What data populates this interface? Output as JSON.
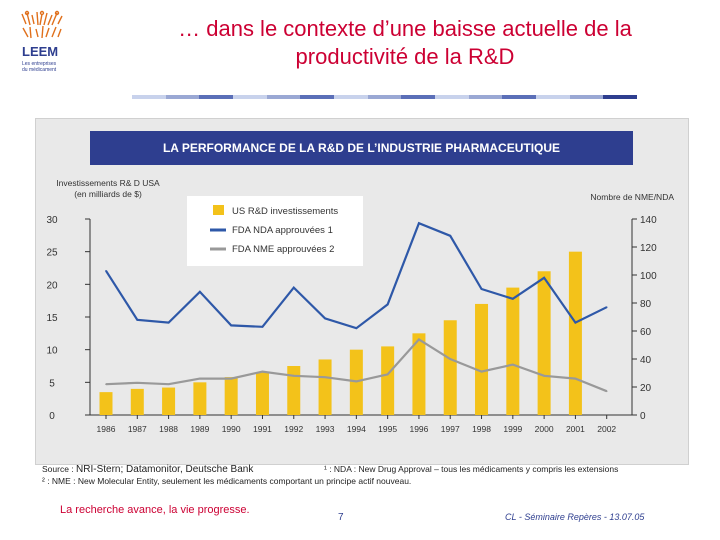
{
  "slide": {
    "title_line1": "… dans le contexte d’une baisse actuelle de la",
    "title_line2": "productivité de la R&D",
    "footer_left": "La recherche avance, la vie progresse.",
    "page_number": "7",
    "footer_right": "CL - Séminaire Repères - 13.07.05"
  },
  "logo": {
    "text": "LEEM",
    "tagline_line1": "Les entreprises",
    "tagline_line2": "du médicament"
  },
  "colors": {
    "title": "#cc0033",
    "header_bg": "#2e3e8f",
    "bars": "#f3c21a",
    "nda_line": "#2e58a8",
    "nme_line": "#999999",
    "rule": [
      "#c8d2ec",
      "#9aa8d4",
      "#5b6fb8",
      "#c8d2ec",
      "#9aa8d4",
      "#5b6fb8",
      "#c8d2ec",
      "#9aa8d4",
      "#5b6fb8",
      "#c8d2ec",
      "#9aa8d4",
      "#5b6fb8",
      "#c8d2ec",
      "#9aa8d4",
      "#2e3e8f"
    ]
  },
  "chart_data": {
    "type": "bar",
    "title": "LA PERFORMANCE DE LA R&D DE L’INDUSTRIE PHARMACEUTIQUE",
    "left_axis_label_line1": "Investissements R& D USA",
    "left_axis_label_line2": "(en milliards de $)",
    "right_axis_label": "Nombre de NME/NDA",
    "categories": [
      "1986",
      "1987",
      "1988",
      "1989",
      "1990",
      "1991",
      "1992",
      "1993",
      "1994",
      "1995",
      "1996",
      "1997",
      "1998",
      "1999",
      "2000",
      "2001",
      "2002"
    ],
    "left_ylim": [
      0,
      30
    ],
    "left_ticks": [
      0,
      5,
      10,
      15,
      20,
      25,
      30
    ],
    "right_ylim": [
      0,
      140
    ],
    "right_ticks": [
      0,
      20,
      40,
      60,
      80,
      100,
      120,
      140
    ],
    "series": [
      {
        "name": "US R&D investissements",
        "type": "bar",
        "axis": "left",
        "values": [
          3.5,
          4.0,
          4.2,
          5.0,
          5.8,
          6.5,
          7.5,
          8.5,
          10.0,
          10.5,
          12.5,
          14.5,
          17.0,
          19.5,
          22.0,
          25.0,
          null
        ]
      },
      {
        "name": "FDA NDA approuvées",
        "superscript": "1",
        "type": "line",
        "axis": "right",
        "values": [
          103,
          68,
          66,
          88,
          64,
          63,
          91,
          69,
          62,
          79,
          137,
          128,
          90,
          83,
          98,
          66,
          77
        ]
      },
      {
        "name": "FDA NME approuvées",
        "superscript": "2",
        "type": "line",
        "axis": "right",
        "values": [
          22,
          23,
          22,
          26,
          26,
          31,
          28,
          27,
          24,
          29,
          54,
          40,
          31,
          36,
          28,
          26,
          17
        ]
      }
    ]
  },
  "source": {
    "source_label": "Source :",
    "source_text": "NRI-Stern; Datamonitor, Deutsche Bank",
    "nda_note": "¹ : NDA : New Drug Approval – tous les médicaments y compris les extensions",
    "nme_note": "² : NME : New Molecular Entity, seulement les médicaments comportant un principe actif nouveau."
  }
}
